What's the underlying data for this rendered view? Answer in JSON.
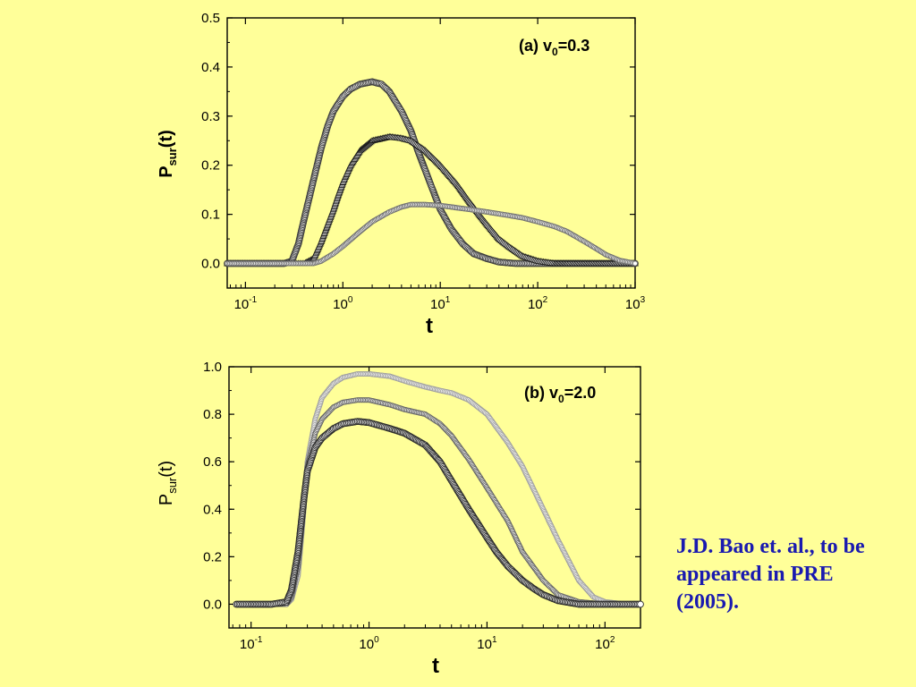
{
  "citation": "J.D. Bao et. al., to be\nappeared  in PRE\n(2005).",
  "colors": {
    "background": "#ffff99",
    "citation": "#1a1ab0",
    "axis": "#000000"
  },
  "chart_data": [
    {
      "type": "scatter",
      "panel_label": "(a) v",
      "panel_label_sub": "0",
      "panel_label_suffix": "=0.3",
      "xlabel": "t",
      "ylabel_main": "P",
      "ylabel_sub": "sur",
      "ylabel_suffix": "(t)",
      "xscale": "log",
      "xlim": [
        0.065,
        1000
      ],
      "ylim": [
        -0.05,
        0.5
      ],
      "xticks": [
        {
          "base": "10",
          "exp": "-1"
        },
        {
          "base": "10",
          "exp": "0"
        },
        {
          "base": "10",
          "exp": "1"
        },
        {
          "base": "10",
          "exp": "2"
        },
        {
          "base": "10",
          "exp": "3"
        }
      ],
      "yticks": [
        "0.0",
        "0.1",
        "0.2",
        "0.3",
        "0.4",
        "0.5"
      ],
      "series": [
        {
          "marker": "circle",
          "color": "#3c3c3c",
          "x": [
            0.065,
            0.1,
            0.15,
            0.2,
            0.25,
            0.3,
            0.35,
            0.4,
            0.5,
            0.6,
            0.7,
            0.8,
            1.0,
            1.2,
            1.5,
            2.0,
            2.5,
            3.0,
            4.0,
            5.0,
            6.0,
            8.0,
            10,
            13,
            17,
            22,
            30,
            40,
            60,
            100,
            200,
            500,
            1000
          ],
          "y": [
            0.0,
            0.0,
            0.0,
            0.0,
            0.0,
            0.005,
            0.04,
            0.09,
            0.17,
            0.235,
            0.28,
            0.31,
            0.34,
            0.355,
            0.365,
            0.37,
            0.365,
            0.35,
            0.31,
            0.27,
            0.225,
            0.16,
            0.11,
            0.07,
            0.04,
            0.02,
            0.01,
            0.003,
            0.0,
            0.0,
            0.0,
            0.0,
            0.0
          ]
        },
        {
          "marker": "triangle",
          "color": "#1e1e1e",
          "x": [
            0.065,
            0.2,
            0.4,
            0.5,
            0.6,
            0.7,
            0.8,
            0.9,
            1.0,
            1.2,
            1.5,
            2.0,
            3.0,
            4.0,
            5.0,
            7.0,
            10,
            15,
            20,
            25,
            30,
            40,
            50,
            70,
            100,
            150,
            200,
            500,
            1000
          ],
          "y": [
            0.0,
            0.0,
            0.0,
            0.01,
            0.045,
            0.08,
            0.11,
            0.14,
            0.165,
            0.2,
            0.23,
            0.25,
            0.258,
            0.255,
            0.25,
            0.23,
            0.2,
            0.16,
            0.125,
            0.1,
            0.08,
            0.05,
            0.035,
            0.015,
            0.005,
            0.0,
            0.0,
            0.0,
            0.0
          ]
        },
        {
          "marker": "circle-small",
          "color": "#707070",
          "x": [
            0.065,
            0.3,
            0.5,
            0.6,
            0.8,
            1.0,
            1.5,
            2.0,
            3.0,
            4.0,
            5.0,
            7.0,
            10,
            20,
            30,
            50,
            70,
            100,
            150,
            200,
            300,
            400,
            500,
            700,
            1000
          ],
          "y": [
            0.0,
            0.0,
            0.0,
            0.005,
            0.02,
            0.035,
            0.065,
            0.085,
            0.105,
            0.115,
            0.12,
            0.12,
            0.118,
            0.11,
            0.105,
            0.098,
            0.093,
            0.085,
            0.075,
            0.065,
            0.045,
            0.03,
            0.018,
            0.006,
            0.0
          ]
        }
      ]
    },
    {
      "type": "scatter",
      "panel_label": "(b) v",
      "panel_label_sub": "0",
      "panel_label_suffix": "=2.0",
      "xlabel": "t",
      "ylabel_main": "P",
      "ylabel_sub": "sur",
      "ylabel_suffix": "(t)",
      "xscale": "log",
      "xlim": [
        0.065,
        200
      ],
      "ylim": [
        -0.1,
        1.0
      ],
      "xticks": [
        {
          "base": "10",
          "exp": "-1"
        },
        {
          "base": "10",
          "exp": "0"
        },
        {
          "base": "10",
          "exp": "1"
        },
        {
          "base": "10",
          "exp": "2"
        }
      ],
      "yticks": [
        "0.0",
        "0.2",
        "0.4",
        "0.6",
        "0.8",
        "1.0"
      ],
      "series": [
        {
          "marker": "circle-small",
          "color": "#a0a0a0",
          "x": [
            0.075,
            0.1,
            0.15,
            0.2,
            0.22,
            0.25,
            0.28,
            0.3,
            0.35,
            0.4,
            0.5,
            0.6,
            0.8,
            1.0,
            1.5,
            2.0,
            3.0,
            4.0,
            5.0,
            7.0,
            10,
            15,
            20,
            30,
            40,
            60,
            80,
            100,
            150,
            200
          ],
          "y": [
            0.0,
            0.0,
            0.0,
            0.0,
            0.02,
            0.12,
            0.4,
            0.6,
            0.78,
            0.87,
            0.93,
            0.955,
            0.97,
            0.97,
            0.96,
            0.94,
            0.915,
            0.9,
            0.89,
            0.86,
            0.8,
            0.68,
            0.58,
            0.4,
            0.27,
            0.1,
            0.03,
            0.01,
            0.0,
            0.0
          ]
        },
        {
          "marker": "circle-small",
          "color": "#666666",
          "x": [
            0.075,
            0.1,
            0.15,
            0.2,
            0.22,
            0.25,
            0.28,
            0.3,
            0.35,
            0.4,
            0.5,
            0.6,
            0.8,
            1.0,
            1.5,
            2.0,
            3.0,
            4.0,
            5.0,
            7.0,
            10,
            15,
            20,
            30,
            40,
            60,
            100,
            200
          ],
          "y": [
            0.0,
            0.0,
            0.0,
            0.0,
            0.03,
            0.16,
            0.42,
            0.58,
            0.72,
            0.78,
            0.83,
            0.85,
            0.86,
            0.86,
            0.84,
            0.82,
            0.8,
            0.76,
            0.71,
            0.61,
            0.49,
            0.35,
            0.22,
            0.1,
            0.04,
            0.01,
            0.0,
            0.0
          ]
        },
        {
          "marker": "circle",
          "color": "#2a2a2a",
          "x": [
            0.075,
            0.1,
            0.15,
            0.2,
            0.22,
            0.25,
            0.28,
            0.3,
            0.35,
            0.4,
            0.5,
            0.6,
            0.8,
            1.0,
            1.5,
            2.0,
            3.0,
            4.0,
            5.0,
            7.0,
            10,
            12,
            15,
            20,
            25,
            30,
            40,
            60,
            100,
            200
          ],
          "y": [
            0.0,
            0.0,
            0.0,
            0.01,
            0.06,
            0.22,
            0.44,
            0.56,
            0.66,
            0.7,
            0.74,
            0.76,
            0.77,
            0.765,
            0.74,
            0.72,
            0.67,
            0.6,
            0.52,
            0.4,
            0.28,
            0.22,
            0.16,
            0.1,
            0.065,
            0.04,
            0.015,
            0.0,
            0.0,
            0.0
          ]
        }
      ]
    }
  ]
}
